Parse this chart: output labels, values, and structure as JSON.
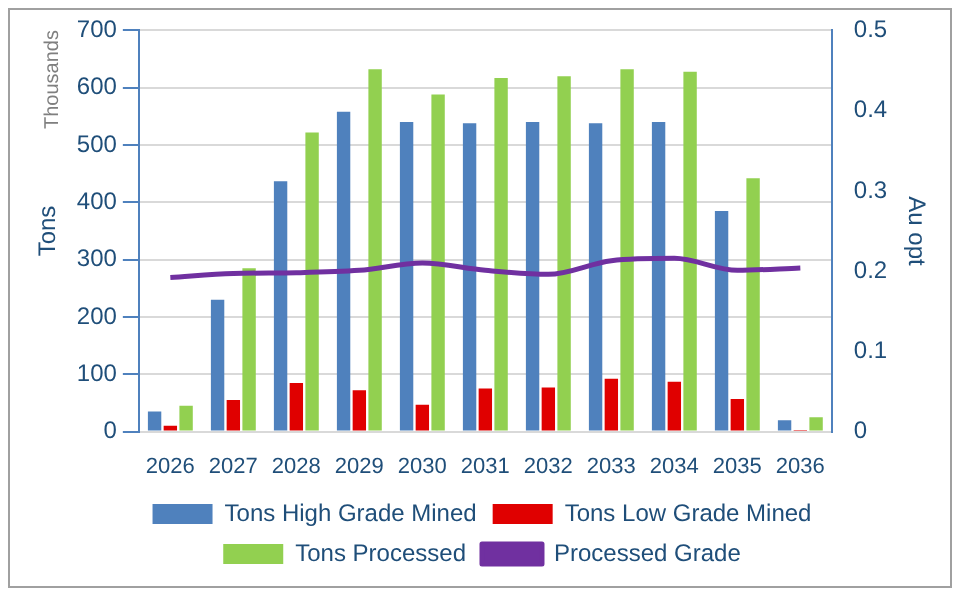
{
  "chart_data": {
    "type": "bar",
    "categories": [
      "2026",
      "2027",
      "2028",
      "2029",
      "2030",
      "2031",
      "2032",
      "2033",
      "2034",
      "2035",
      "2036"
    ],
    "series": [
      {
        "name": "Tons High Grade Mined",
        "color": "#4f81bd",
        "values": [
          35,
          230,
          437,
          558,
          540,
          538,
          540,
          538,
          540,
          385,
          20
        ]
      },
      {
        "name": "Tons Low Grade Mined",
        "color": "#e00000",
        "values": [
          10,
          55,
          85,
          72,
          47,
          75,
          77,
          92,
          87,
          57,
          3
        ]
      },
      {
        "name": "Tons Processed",
        "color": "#92d050",
        "values": [
          45,
          285,
          522,
          632,
          588,
          617,
          620,
          632,
          628,
          442,
          25
        ]
      },
      {
        "name": "Processed Grade",
        "type": "line",
        "axis": "y2",
        "color": "#7030a0",
        "values": [
          0.192,
          0.197,
          0.198,
          0.201,
          0.21,
          0.201,
          0.196,
          0.213,
          0.216,
          0.201,
          0.204
        ]
      }
    ],
    "ylabel": "Tons",
    "y2label": "Au opt",
    "annotations": [
      "Thousands"
    ],
    "ylim": [
      0,
      700
    ],
    "yticks": [
      0,
      100,
      200,
      300,
      400,
      500,
      600,
      700
    ],
    "y2lim": [
      0,
      0.5
    ],
    "y2ticks": [
      0,
      0.1,
      0.2,
      0.3,
      0.4,
      0.5
    ],
    "grid": "y",
    "legend": "bottom",
    "marker": "none"
  }
}
